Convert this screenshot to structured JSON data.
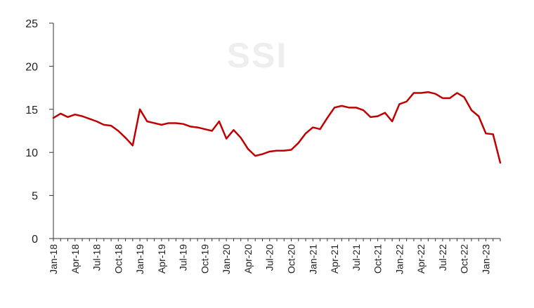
{
  "chart_data": {
    "type": "line",
    "title": "",
    "xlabel": "",
    "ylabel": "",
    "watermark": "SSI",
    "ylim": [
      0,
      25
    ],
    "yticks": [
      0,
      5,
      10,
      15,
      20,
      25
    ],
    "x_tick_labels": [
      "Jan-18",
      "Apr-18",
      "Jul-18",
      "Oct-18",
      "Jan-19",
      "Apr-19",
      "Jul-19",
      "Oct-19",
      "Jan-20",
      "Apr-20",
      "Jul-20",
      "Oct-20",
      "Jan-21",
      "Apr-21",
      "Jul-21",
      "Oct-21",
      "Jan-22",
      "Apr-22",
      "Jul-22",
      "Oct-22",
      "Jan-23"
    ],
    "x_tick_step": 3,
    "color": "#c00000",
    "categories": [
      "Jan-18",
      "Feb-18",
      "Mar-18",
      "Apr-18",
      "May-18",
      "Jun-18",
      "Jul-18",
      "Aug-18",
      "Sep-18",
      "Oct-18",
      "Nov-18",
      "Dec-18",
      "Jan-19",
      "Feb-19",
      "Mar-19",
      "Apr-19",
      "May-19",
      "Jun-19",
      "Jul-19",
      "Aug-19",
      "Sep-19",
      "Oct-19",
      "Nov-19",
      "Dec-19",
      "Jan-20",
      "Feb-20",
      "Mar-20",
      "Apr-20",
      "May-20",
      "Jun-20",
      "Jul-20",
      "Aug-20",
      "Sep-20",
      "Oct-20",
      "Nov-20",
      "Dec-20",
      "Jan-21",
      "Feb-21",
      "Mar-21",
      "Apr-21",
      "May-21",
      "Jun-21",
      "Jul-21",
      "Aug-21",
      "Sep-21",
      "Oct-21",
      "Nov-21",
      "Dec-21",
      "Jan-22",
      "Feb-22",
      "Mar-22",
      "Apr-22",
      "May-22",
      "Jun-22",
      "Jul-22",
      "Aug-22",
      "Sep-22",
      "Oct-22",
      "Nov-22",
      "Dec-22",
      "Jan-23",
      "Feb-23",
      "Mar-23"
    ],
    "series": [
      {
        "name": "Series 1",
        "values": [
          14.0,
          14.5,
          14.1,
          14.4,
          14.2,
          13.9,
          13.6,
          13.2,
          13.1,
          12.5,
          11.7,
          10.8,
          15.0,
          13.6,
          13.4,
          13.2,
          13.4,
          13.4,
          13.3,
          13.0,
          12.9,
          12.7,
          12.5,
          13.6,
          11.6,
          12.6,
          11.7,
          10.4,
          9.6,
          9.8,
          10.1,
          10.2,
          10.2,
          10.3,
          11.1,
          12.2,
          12.9,
          12.7,
          14.0,
          15.2,
          15.4,
          15.2,
          15.2,
          14.9,
          14.1,
          14.2,
          14.6,
          13.6,
          15.6,
          15.9,
          16.9,
          16.9,
          17.0,
          16.8,
          16.3,
          16.3,
          16.9,
          16.4,
          14.9,
          14.2,
          12.2,
          12.1,
          8.8
        ]
      }
    ]
  }
}
